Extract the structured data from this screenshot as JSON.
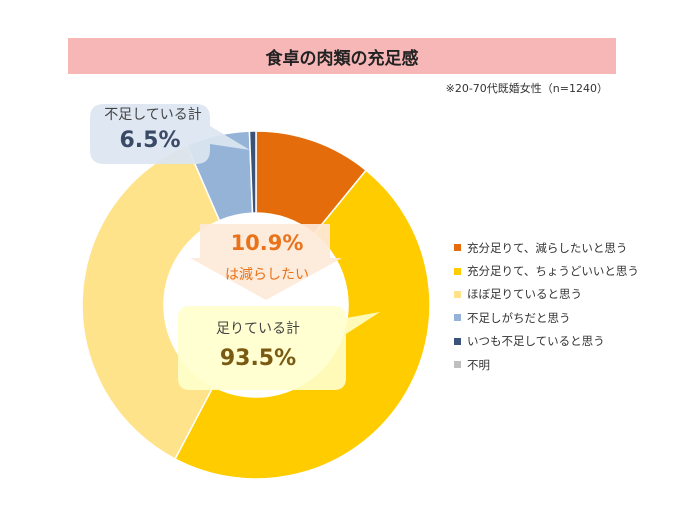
{
  "chart_data": {
    "type": "pie",
    "title": "食卓の肉類の充足感",
    "note": "※20-70代既婚女性（n=1240）",
    "series": [
      {
        "name": "充分足りて、減らしたいと思う",
        "value": 10.9,
        "color": "#e46c0a"
      },
      {
        "name": "充分足りて、ちょうどいいと思う",
        "value": 46.8,
        "color": "#ffcc00"
      },
      {
        "name": "ほぼ足りていると思う",
        "value": 35.8,
        "color": "#ffe38a"
      },
      {
        "name": "不足しがちだと思う",
        "value": 5.9,
        "color": "#95b3d7"
      },
      {
        "name": "いつも不足していると思う",
        "value": 0.6,
        "color": "#3b5378"
      },
      {
        "name": "不明",
        "value": 0.0,
        "color": "#bfbfbf"
      }
    ],
    "annotations": {
      "fusoku_label": "不足している計",
      "fusoku_value": "6.5%",
      "genryo_value": "10.9%",
      "genryo_label": "は減らしたい",
      "tari_label": "足りている計",
      "tari_value": "93.5%"
    },
    "legend_position": "right"
  }
}
